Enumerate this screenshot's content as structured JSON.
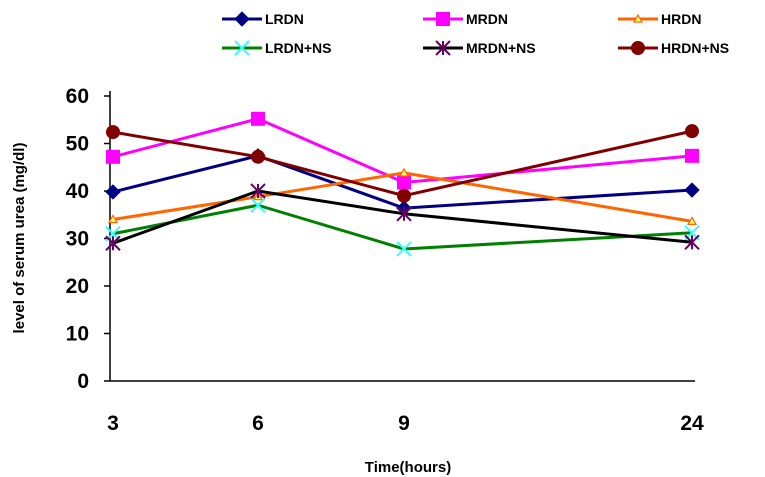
{
  "chart_data": {
    "type": "line",
    "title": "",
    "xlabel": "Time(hours)",
    "ylabel": "level of serum urea (mg/dl)",
    "categories": [
      "3",
      "6",
      "9",
      "24"
    ],
    "ylim": [
      0,
      60
    ],
    "yticks": [
      0,
      10,
      20,
      30,
      40,
      50,
      60
    ],
    "grid": false,
    "legend_position": "top",
    "series": [
      {
        "name": "LRDN",
        "values": [
          39.8,
          47.4,
          36.4,
          40.2
        ],
        "color": "#000080",
        "marker": "diamond"
      },
      {
        "name": "MRDN",
        "values": [
          47.2,
          55.2,
          41.8,
          47.4
        ],
        "color": "#ff00ff",
        "marker": "square"
      },
      {
        "name": "HRDN",
        "values": [
          34.0,
          38.8,
          43.8,
          33.6
        ],
        "color": "#ff6600",
        "marker": "triangle"
      },
      {
        "name": "LRDN+NS",
        "values": [
          31.0,
          37.0,
          27.8,
          31.2
        ],
        "color": "#008000",
        "marker": "x",
        "marker_color": "#33ffff"
      },
      {
        "name": "MRDN+NS",
        "values": [
          29.0,
          40.0,
          35.2,
          29.2
        ],
        "color": "#000000",
        "marker": "star",
        "marker_color": "#660066"
      },
      {
        "name": "HRDN+NS",
        "values": [
          52.4,
          47.2,
          39.0,
          52.6
        ],
        "color": "#800000",
        "marker": "circle"
      }
    ]
  }
}
